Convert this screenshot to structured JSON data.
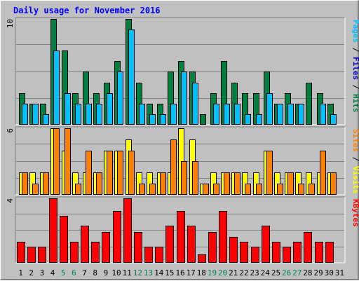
{
  "chart_data": {
    "type": "bar",
    "title": "Daily usage for November 2016",
    "categories": [
      "1",
      "2",
      "3",
      "4",
      "5",
      "6",
      "7",
      "8",
      "9",
      "10",
      "11",
      "12",
      "13",
      "14",
      "15",
      "16",
      "17",
      "18",
      "19",
      "20",
      "21",
      "22",
      "23",
      "24",
      "25",
      "26",
      "27",
      "28",
      "29",
      "30",
      "31"
    ],
    "weekend_days": [
      "5",
      "6",
      "12",
      "13",
      "19",
      "20",
      "26",
      "27"
    ],
    "colors": {
      "hits": "#008040",
      "files": "#00c0ff",
      "sites": "#ff8000",
      "visits": "#ffff00",
      "kbytes": "#ff0000",
      "pages_label": "#00c0ff",
      "weekday_label": "#000000",
      "weekend_label": "#00805c",
      "title": "#0000ff",
      "background": "#c0c0c0",
      "grid": "#808080"
    },
    "panels": [
      {
        "id": "hits-files",
        "ymax": 10,
        "ytick_label": "10",
        "right_labels": [
          {
            "text": "Pages",
            "color": "#00c0ff"
          },
          {
            "text": " / ",
            "color": "#000000"
          },
          {
            "text": "Files",
            "color": "#0000c0"
          },
          {
            "text": " / ",
            "color": "#000000"
          },
          {
            "text": "Hits",
            "color": "#008040"
          }
        ],
        "series": [
          {
            "name": "Hits",
            "color": "#008040",
            "values": [
              3,
              2,
              2,
              10,
              7,
              3,
              5,
              3,
              4,
              6,
              10,
              4,
              2,
              2,
              5,
              6,
              5,
              1,
              3,
              6,
              4,
              3,
              3,
              5,
              2,
              3,
              2,
              4,
              3,
              2,
              0
            ]
          },
          {
            "name": "Files",
            "color": "#00c0ff",
            "values": [
              2,
              2,
              1,
              7,
              3,
              2,
              2,
              2,
              3,
              5,
              9,
              2,
              1,
              1,
              2,
              5,
              4,
              0,
              2,
              2,
              2,
              1,
              1,
              3,
              2,
              2,
              2,
              0,
              2,
              1,
              0
            ]
          }
        ]
      },
      {
        "id": "sites-visits",
        "ymax": 6,
        "ytick_label": "6",
        "right_labels": [
          {
            "text": "Sites",
            "color": "#ff8000"
          },
          {
            "text": " / ",
            "color": "#000000"
          },
          {
            "text": "Visits",
            "color": "#ffff00"
          }
        ],
        "series": [
          {
            "name": "Visits",
            "color": "#ffff00",
            "values": [
              2,
              2,
              2,
              6,
              4,
              2,
              2,
              2,
              4,
              4,
              5,
              2,
              2,
              2,
              2,
              6,
              5,
              1,
              2,
              2,
              2,
              2,
              2,
              4,
              2,
              2,
              2,
              2,
              2,
              2,
              0
            ]
          },
          {
            "name": "Sites",
            "color": "#ff8000",
            "values": [
              2,
              1,
              2,
              6,
              6,
              1,
              4,
              2,
              4,
              4,
              4,
              1,
              1,
              2,
              5,
              3,
              3,
              1,
              1,
              2,
              2,
              1,
              1,
              4,
              1,
              2,
              1,
              1,
              4,
              2,
              0
            ]
          }
        ]
      },
      {
        "id": "kbytes",
        "ymax": 4,
        "ytick_label": "4",
        "right_labels": [
          {
            "text": "KBytes",
            "color": "#ff0000"
          }
        ],
        "series": [
          {
            "name": "KBytes",
            "color": "#ff0000",
            "values": [
              1.3,
              1.0,
              1.0,
              4.0,
              2.9,
              1.3,
              2.3,
              1.3,
              1.9,
              3.2,
              4.0,
              1.9,
              1.0,
              1.0,
              2.3,
              3.2,
              2.3,
              0.5,
              1.9,
              3.2,
              1.6,
              1.3,
              1.0,
              2.3,
              1.3,
              1.0,
              1.3,
              1.9,
              1.3,
              1.3,
              0
            ]
          }
        ]
      }
    ]
  }
}
